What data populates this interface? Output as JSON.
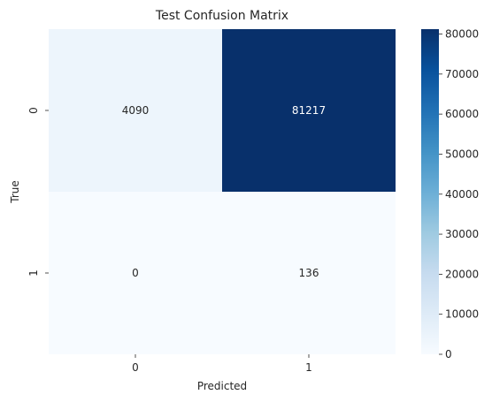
{
  "chart_data": {
    "type": "heatmap",
    "title": "Test Confusion Matrix",
    "xlabel": "Predicted",
    "ylabel": "True",
    "x_categories": [
      "0",
      "1"
    ],
    "y_categories": [
      "0",
      "1"
    ],
    "values": [
      [
        4090,
        81217
      ],
      [
        0,
        136
      ]
    ],
    "colormap": "Blues",
    "colorbar": {
      "min": 0,
      "max": 81217,
      "ticks": [
        0,
        10000,
        20000,
        30000,
        40000,
        50000,
        60000,
        70000,
        80000
      ],
      "tick_labels": [
        "0",
        "10000",
        "20000",
        "30000",
        "40000",
        "50000",
        "60000",
        "70000",
        "80000"
      ]
    },
    "annotations": true,
    "grid": false
  }
}
